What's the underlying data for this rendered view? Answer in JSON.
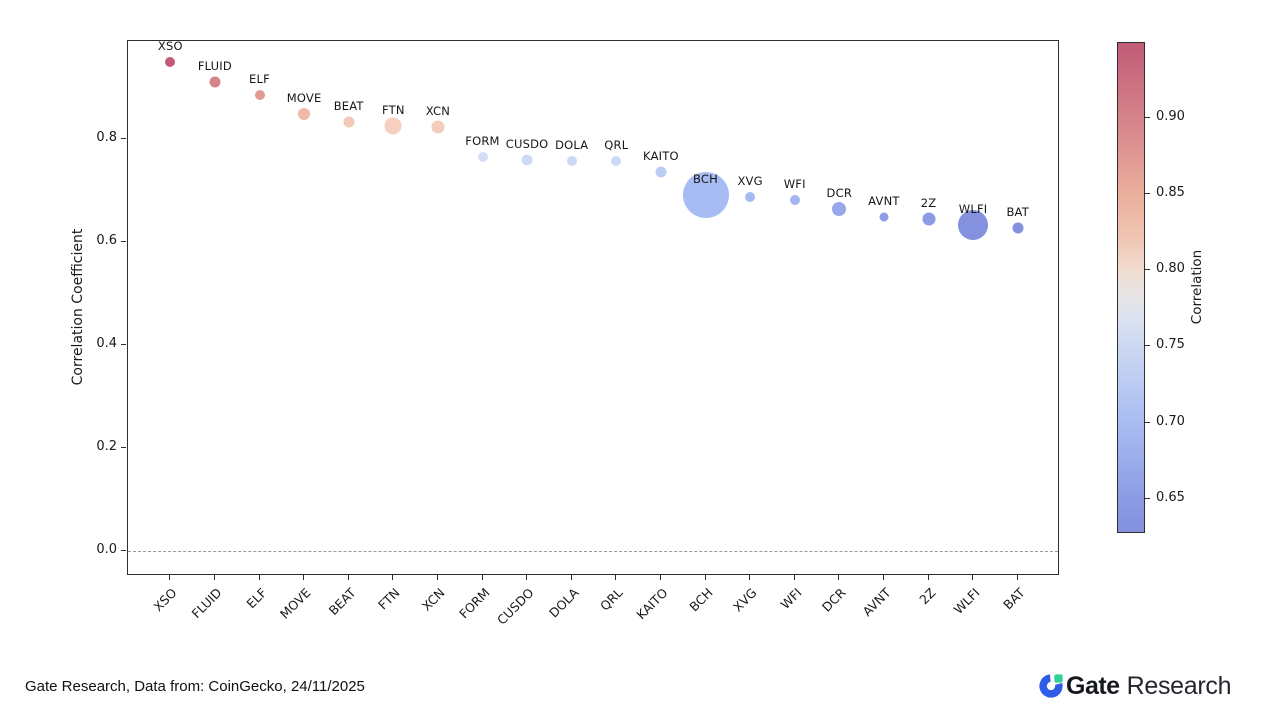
{
  "chart_data": {
    "type": "scatter",
    "title": "",
    "ylabel": "Correlation Coefficient",
    "ylim": [
      -0.049,
      0.99
    ],
    "yticks": [
      0.0,
      0.2,
      0.4,
      0.6,
      0.8
    ],
    "zero_line": 0.0,
    "grid": false,
    "categories": [
      "XSO",
      "FLUID",
      "ELF",
      "MOVE",
      "BEAT",
      "FTN",
      "XCN",
      "FORM",
      "CUSDO",
      "DOLA",
      "QRL",
      "KAITO",
      "BCH",
      "XVG",
      "WFI",
      "DCR",
      "AVNT",
      "2Z",
      "WLFI",
      "BAT"
    ],
    "points": [
      {
        "label": "XSO",
        "value": 0.949,
        "size": 10,
        "color": "#c25c74"
      },
      {
        "label": "FLUID",
        "value": 0.91,
        "size": 11,
        "color": "#d8838b"
      },
      {
        "label": "ELF",
        "value": 0.886,
        "size": 10,
        "color": "#e29a94"
      },
      {
        "label": "MOVE",
        "value": 0.848,
        "size": 12,
        "color": "#efbaa8"
      },
      {
        "label": "BEAT",
        "value": 0.832,
        "size": 11,
        "color": "#f4c8b6"
      },
      {
        "label": "FTN",
        "value": 0.824,
        "size": 17,
        "color": "#f6cfc0"
      },
      {
        "label": "XCN",
        "value": 0.823,
        "size": 13,
        "color": "#f5cdbd"
      },
      {
        "label": "FORM",
        "value": 0.764,
        "size": 10,
        "color": "#d4def4"
      },
      {
        "label": "CUSDO",
        "value": 0.758,
        "size": 11,
        "color": "#cfdaf4"
      },
      {
        "label": "DOLA",
        "value": 0.757,
        "size": 10,
        "color": "#cedaf4"
      },
      {
        "label": "QRL",
        "value": 0.756,
        "size": 10,
        "color": "#cdd9f4"
      },
      {
        "label": "KAITO",
        "value": 0.735,
        "size": 11,
        "color": "#bccdf4"
      },
      {
        "label": "BCH",
        "value": 0.69,
        "size": 46,
        "color": "#a7bcf2"
      },
      {
        "label": "XVG",
        "value": 0.688,
        "size": 10,
        "color": "#a5baf1"
      },
      {
        "label": "WFI",
        "value": 0.681,
        "size": 10,
        "color": "#a2b6ef"
      },
      {
        "label": "DCR",
        "value": 0.664,
        "size": 14,
        "color": "#97a8ea"
      },
      {
        "label": "AVNT",
        "value": 0.648,
        "size": 9,
        "color": "#8d9de5"
      },
      {
        "label": "2Z",
        "value": 0.645,
        "size": 13,
        "color": "#8c9ce4"
      },
      {
        "label": "WLFI",
        "value": 0.632,
        "size": 30,
        "color": "#8491df"
      },
      {
        "label": "BAT",
        "value": 0.627,
        "size": 11,
        "color": "#8290de"
      }
    ],
    "colorbar": {
      "label": "Correlation",
      "min": 0.627,
      "max": 0.949,
      "ticks": [
        0.9,
        0.85,
        0.8,
        0.75,
        0.7,
        0.65
      ],
      "gradient": [
        {
          "v": 0.949,
          "c": "#c15c77"
        },
        {
          "v": 0.9,
          "c": "#d5828a"
        },
        {
          "v": 0.85,
          "c": "#eaae9c"
        },
        {
          "v": 0.82,
          "c": "#f0c6b3"
        },
        {
          "v": 0.8,
          "c": "#f1dcd0"
        },
        {
          "v": 0.785,
          "c": "#e9e4e2"
        },
        {
          "v": 0.77,
          "c": "#dde3f0"
        },
        {
          "v": 0.75,
          "c": "#cdd9f2"
        },
        {
          "v": 0.7,
          "c": "#aabdf1"
        },
        {
          "v": 0.65,
          "c": "#8c9ce4"
        },
        {
          "v": 0.627,
          "c": "#8290de"
        }
      ]
    }
  },
  "footer": {
    "source": "Gate Research, Data from: CoinGecko, 24/11/2025",
    "brand": {
      "gate": "Gate",
      "research": "Research"
    }
  },
  "colors": {
    "accent_blue": "#2d5ce6",
    "accent_green": "#2ed191",
    "text": "#1a1a1a",
    "spine": "#2e2e2e"
  }
}
